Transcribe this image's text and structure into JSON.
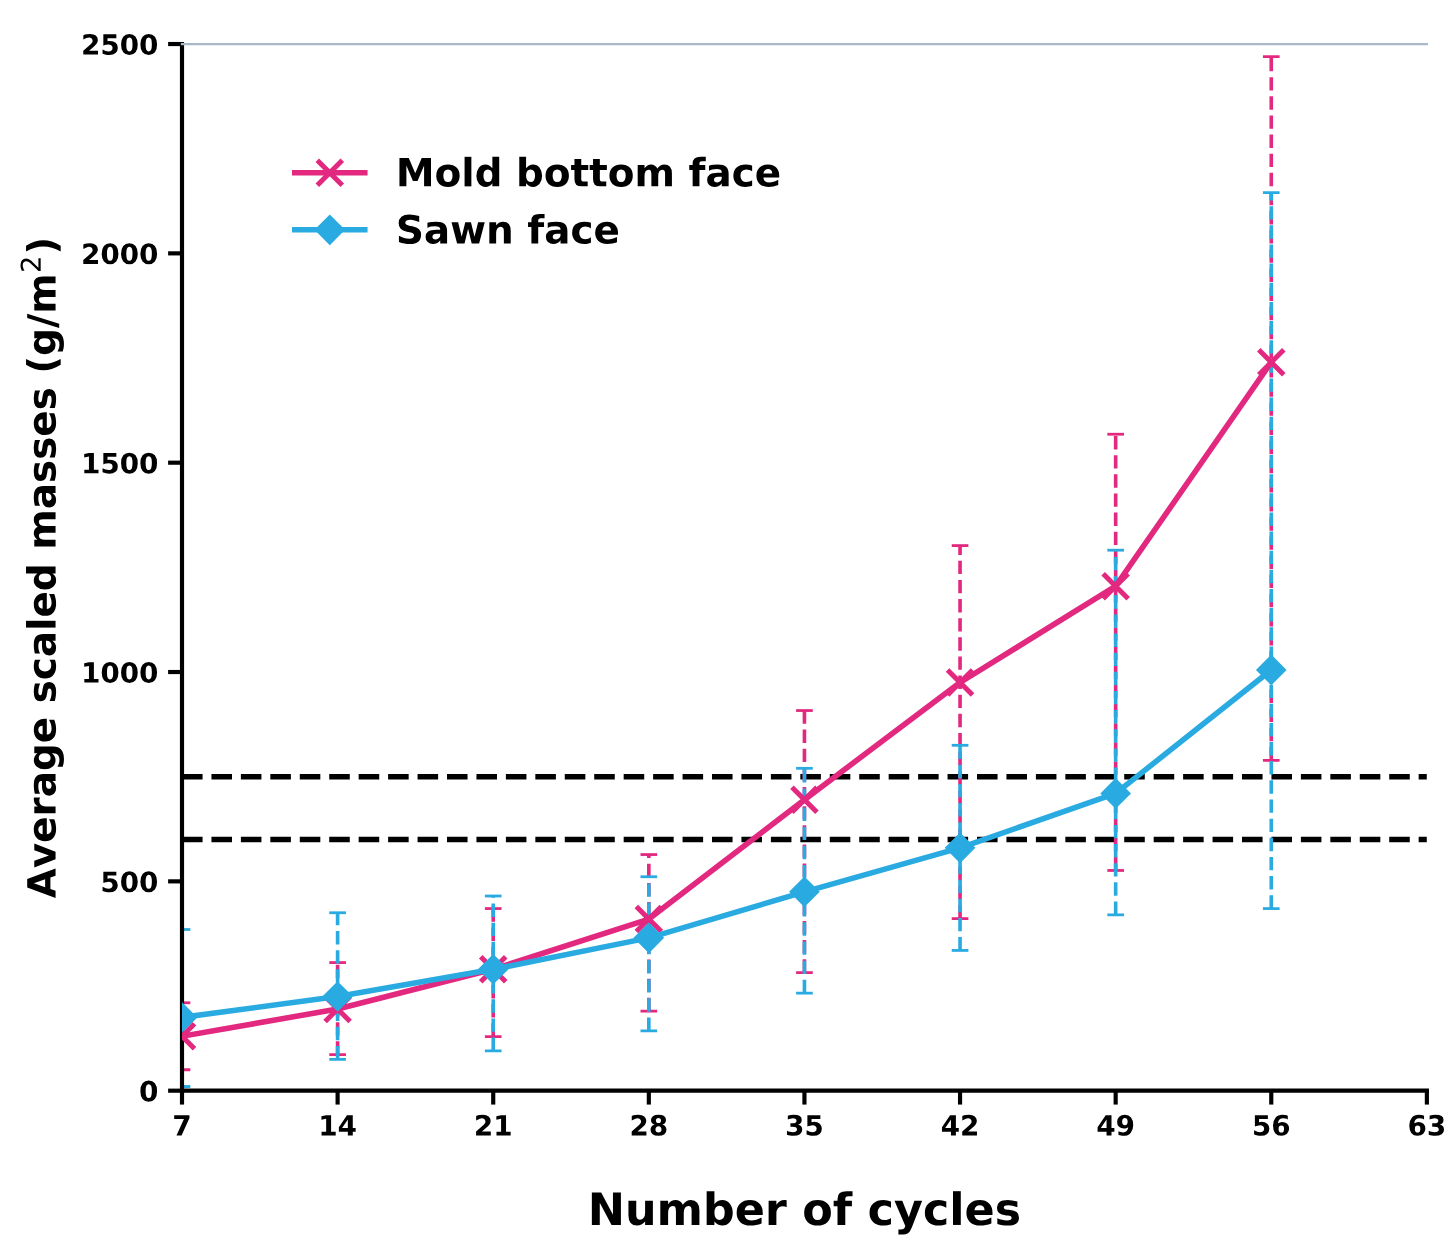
{
  "chart_data": {
    "type": "line",
    "xlabel": "Number of cycles",
    "ylabel": "Average scaled masses (g/m$^{2}$)",
    "x": [
      7,
      14,
      21,
      28,
      35,
      42,
      49,
      56
    ],
    "series": [
      {
        "name": "Mold bottom face",
        "color": "#e2287f",
        "marker": "cross",
        "values": [
          130,
          195,
          290,
          410,
          695,
          975,
          1205,
          1740
        ],
        "errors": [
          [
            50,
            210
          ],
          [
            86,
            306
          ],
          [
            129,
            435
          ],
          [
            190,
            564
          ],
          [
            282,
            908
          ],
          [
            411,
            1302
          ],
          [
            526,
            1568
          ],
          [
            789,
            2470
          ]
        ]
      },
      {
        "name": "Sawn face",
        "color": "#29abe2",
        "marker": "diamond",
        "values": [
          175,
          225,
          290,
          365,
          475,
          580,
          710,
          1005
        ],
        "errors": [
          [
            10,
            385
          ],
          [
            75,
            425
          ],
          [
            95,
            465
          ],
          [
            143,
            511
          ],
          [
            233,
            770
          ],
          [
            335,
            825
          ],
          [
            420,
            1291
          ],
          [
            435,
            2145
          ]
        ]
      }
    ],
    "xlim": [
      7,
      63
    ],
    "xticks": [
      7,
      14,
      21,
      28,
      35,
      42,
      49,
      56,
      63
    ],
    "ylim": [
      0,
      2500
    ],
    "yticks": [
      0,
      500,
      1000,
      1500,
      2000,
      2500
    ],
    "ref_lines": [
      {
        "axis": "y",
        "value": 750,
        "color": "#000000",
        "line_style": "dashed"
      },
      {
        "axis": "y",
        "value": 600,
        "color": "#000000",
        "line_style": "dashed"
      }
    ],
    "grid": false,
    "legend": "top left"
  }
}
